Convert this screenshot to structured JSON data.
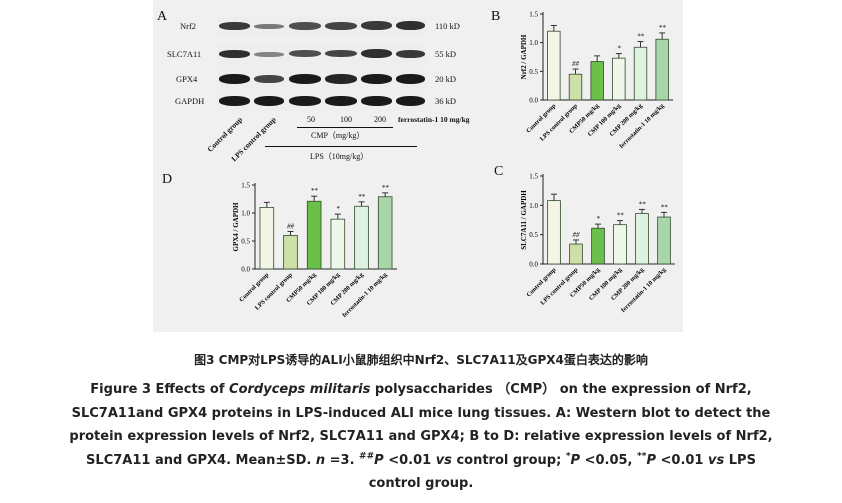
{
  "panel_a": {
    "letter": "A",
    "rows": [
      {
        "label": "Nrf2",
        "size": "110 kD"
      },
      {
        "label": "SLC7A11",
        "size": "55 kD"
      },
      {
        "label": "GPX4",
        "size": "20 kD"
      },
      {
        "label": "GAPDH",
        "size": "36 kD"
      }
    ],
    "lanes": [
      "Control group",
      "LPS control group"
    ],
    "cmp_doses": [
      "50",
      "100",
      "200"
    ],
    "ferrostatin": "ferrostatin-1 10 mg/kg",
    "cmp_label": "CMP（mg/kg）",
    "lps_label": "LPS（10mg/kg）"
  },
  "colors": {
    "control": "#f3f6e4",
    "lps": "#cde0a8",
    "cmp50": "#6bbf4b",
    "cmp100": "#eff6ea",
    "cmp200": "#dff2e2",
    "ferro": "#a8d6a8",
    "error": "#333333"
  },
  "chart_data": [
    {
      "panel": "B",
      "type": "bar",
      "ylabel": "Nrf2 / GAPDH",
      "ylim": [
        0,
        1.5
      ],
      "yticks": [
        "0.0",
        "0.5",
        "1.0",
        "1.5"
      ],
      "categories": [
        "Control group",
        "LPS control group",
        "CMP50 mg/kg",
        "CMP 100 mg/kg",
        "CMP 200 mg/kg",
        "ferrostatin-1 10 mg/kg"
      ],
      "values": [
        1.2,
        0.45,
        0.67,
        0.73,
        0.92,
        1.06
      ],
      "errors": [
        0.1,
        0.09,
        0.1,
        0.08,
        0.1,
        0.11
      ],
      "annotations": [
        "",
        "##",
        "",
        "*",
        "**",
        "**"
      ]
    },
    {
      "panel": "C",
      "type": "bar",
      "ylabel": "SLC7A11 / GAPDH",
      "ylim": [
        0,
        1.5
      ],
      "yticks": [
        "0.0",
        "0.5",
        "1.0",
        "1.5"
      ],
      "categories": [
        "Control group",
        "LPS control group",
        "CMP50 mg/kg",
        "CMP 100 mg/kg",
        "CMP 200 mg/kg",
        "ferrostatin-1 10 mg/kg"
      ],
      "values": [
        1.08,
        0.34,
        0.61,
        0.67,
        0.86,
        0.8
      ],
      "errors": [
        0.11,
        0.07,
        0.07,
        0.07,
        0.07,
        0.08
      ],
      "annotations": [
        "",
        "##",
        "*",
        "**",
        "**",
        "**"
      ]
    },
    {
      "panel": "D",
      "type": "bar",
      "ylabel": "GPX4 / GAPDH",
      "ylim": [
        0,
        1.5
      ],
      "yticks": [
        "0.0",
        "0.5",
        "1.0",
        "1.5"
      ],
      "categories": [
        "Control group",
        "LPS control group",
        "CMP50 mg/kg",
        "CMP 100 mg/kg",
        "CMP 200 mg/kg",
        "ferrostatin-1 10 mg/kg"
      ],
      "values": [
        1.1,
        0.6,
        1.21,
        0.89,
        1.12,
        1.29
      ],
      "errors": [
        0.09,
        0.07,
        0.09,
        0.09,
        0.08,
        0.07
      ],
      "annotations": [
        "",
        "##",
        "**",
        "*",
        "**",
        "**"
      ]
    }
  ],
  "caption": {
    "cn": "图3  CMP对LPS诱导的ALI小鼠肺组织中Nrf2、SLC7A11及GPX4蛋白表达的影响",
    "en_fig": "Figure 3  Effects of ",
    "en_species": "Cordyceps militaris",
    "en_1": " polysaccharides （CMP） on the expression of Nrf2,",
    "en_2": "SLC7A11and GPX4 proteins in LPS-induced ALI mice lung tissues. A:  Western blot to detect the",
    "en_3": "protein expression levels of Nrf2,  SLC7A11 and GPX4;  B to D:  relative expression levels of Nrf2,",
    "en_4a": "SLC7A11 and GPX4. Mean±SD. ",
    "en_n": "n",
    "en_4b": " =3. ",
    "en_sup_hh": "##",
    "en_p": "P",
    "en_4c": " <0.01 ",
    "en_vs": "vs",
    "en_4d": " control group;  ",
    "en_sup_s": "*",
    "en_4e": " <0.05,  ",
    "en_sup_ss": "**",
    "en_4f": " <0.01 ",
    "en_4g": " LPS",
    "en_5": "control group."
  }
}
